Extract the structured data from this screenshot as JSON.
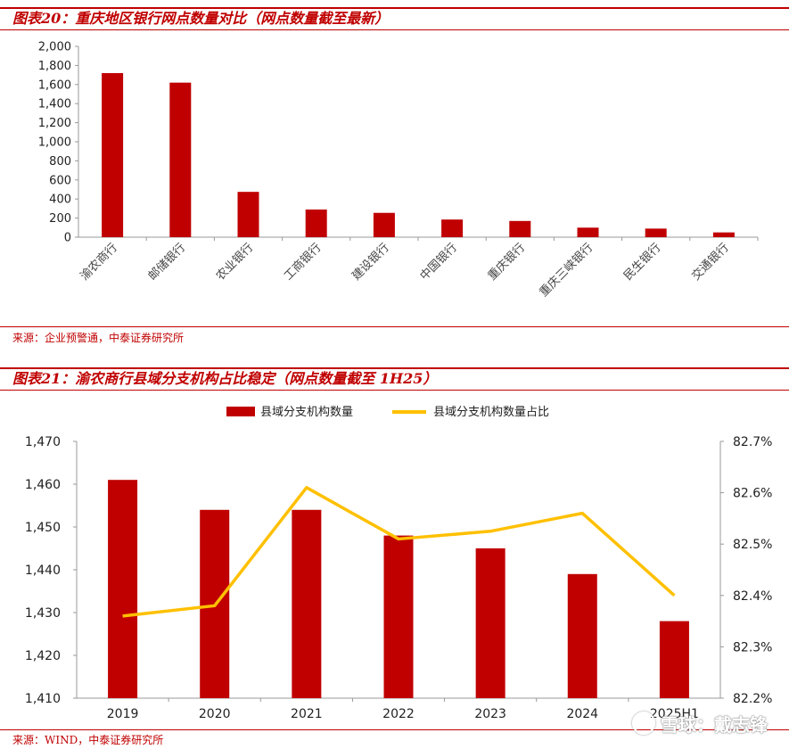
{
  "fig20": {
    "title": "图表20：重庆地区银行网点数量对比（网点数量截至最新）",
    "source": "来源：企业预警通，中泰证券研究所"
  },
  "fig21": {
    "title": "图表21：渝农商行县域分支机构占比稳定（网点数量截至 1H25）",
    "source": "来源：WIND，中泰证券研究所"
  },
  "watermark": "雪球：戴志锋",
  "colors": {
    "bar": "#c00000",
    "line": "#ffc000",
    "accent": "#c00000"
  },
  "chart_data": [
    {
      "type": "bar",
      "categories": [
        "渝农商行",
        "邮储银行",
        "农业银行",
        "工商银行",
        "建设银行",
        "中国银行",
        "重庆银行",
        "重庆三峡银行",
        "民生银行",
        "交通银行"
      ],
      "values": [
        1720,
        1620,
        475,
        290,
        255,
        185,
        170,
        100,
        90,
        50
      ],
      "yticks": [
        "0",
        "200",
        "400",
        "600",
        "800",
        "1,000",
        "1,200",
        "1,400",
        "1,600",
        "1,800",
        "2,000"
      ],
      "ylim": [
        0,
        2000
      ],
      "grid": false,
      "legend": "none"
    },
    {
      "type": "bar",
      "categories": [
        "2019",
        "2020",
        "2021",
        "2022",
        "2023",
        "2024",
        "2025H1"
      ],
      "series": [
        {
          "name": "县域分支机构数量",
          "type": "bar",
          "axis": "left",
          "values": [
            1461,
            1454,
            1454,
            1448,
            1445,
            1439,
            1428
          ]
        },
        {
          "name": "县域分支机构数量占比",
          "type": "line",
          "axis": "right",
          "values": [
            82.36,
            82.38,
            82.61,
            82.51,
            82.525,
            82.56,
            82.4
          ]
        }
      ],
      "ylim": [
        1410,
        1470
      ],
      "yticks": [
        "1,410",
        "1,420",
        "1,430",
        "1,440",
        "1,450",
        "1,460",
        "1,470"
      ],
      "y2lim": [
        82.2,
        82.7
      ],
      "y2ticks": [
        "82.2%",
        "82.3%",
        "82.4%",
        "82.5%",
        "82.6%",
        "82.7%"
      ],
      "grid": false,
      "legend": "top-center"
    }
  ]
}
